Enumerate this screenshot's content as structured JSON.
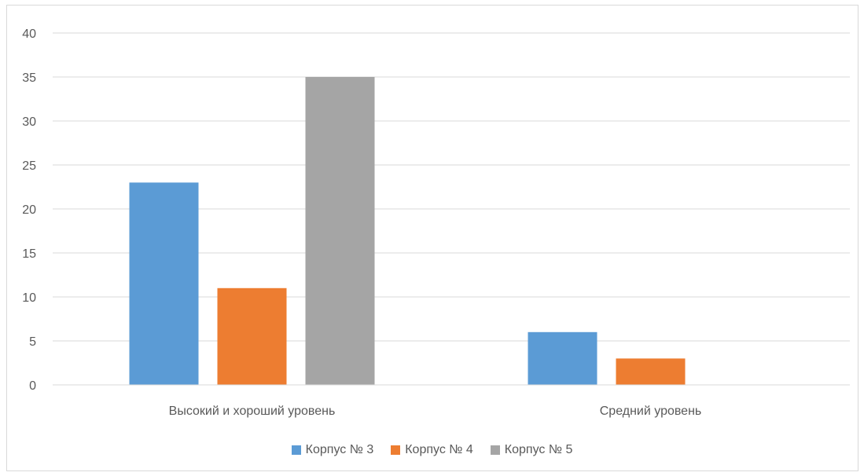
{
  "chart_data": {
    "type": "bar",
    "categories": [
      "Высокий и хороший уровень",
      "Средний уровень"
    ],
    "series": [
      {
        "name": "Корпус № 3",
        "values": [
          23,
          6
        ],
        "color": "#5b9bd5"
      },
      {
        "name": "Корпус № 4",
        "values": [
          11,
          3
        ],
        "color": "#ed7d31"
      },
      {
        "name": "Корпус № 5",
        "values": [
          35,
          0
        ],
        "color": "#a5a5a5"
      }
    ],
    "ylim": [
      0,
      40
    ],
    "yticks": [
      0,
      5,
      10,
      15,
      20,
      25,
      30,
      35,
      40
    ],
    "grid": true,
    "legend_position": "bottom"
  }
}
